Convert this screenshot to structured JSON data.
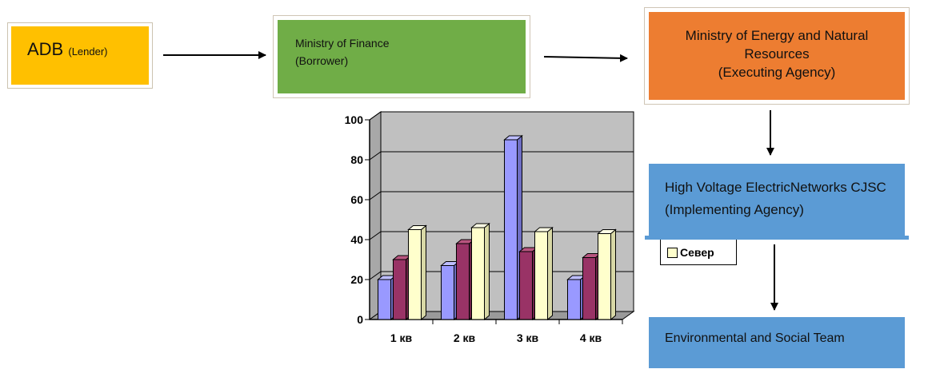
{
  "nodes": {
    "adb": {
      "label": "ADB",
      "sublabel": "(Lender)"
    },
    "mof": {
      "line1": "Ministry of Finance",
      "line2": "(Borrower)"
    },
    "moe": {
      "line1": "Ministry of Energy and Natural",
      "line2": "Resources",
      "line3": "(Executing Agency)"
    },
    "hv": {
      "line1": "High Voltage ElectricNetworks CJSC",
      "line2": "(Implementing Agency)"
    },
    "est": {
      "label": "Environmental and Social Team"
    }
  },
  "colors": {
    "adb": "#ffc000",
    "mof": "#70ad47",
    "moe": "#ed7d31",
    "hv": "#5b9bd5",
    "est": "#5b9bd5",
    "series1": "#9999ff",
    "series2": "#993366",
    "series3": "#ffffcc",
    "plot_bg": "#c0c0c0"
  },
  "legend": {
    "label": "Север"
  },
  "chart_data": {
    "type": "bar",
    "categories": [
      "1 кв",
      "2 кв",
      "3 кв",
      "4 кв"
    ],
    "series": [
      {
        "values": [
          20,
          27,
          90,
          20
        ]
      },
      {
        "values": [
          30,
          38,
          34,
          31
        ]
      },
      {
        "name": "Север",
        "values": [
          45,
          46,
          44,
          43
        ]
      }
    ],
    "ylim": [
      0,
      100
    ],
    "yticks": [
      0,
      20,
      40,
      60,
      80,
      100
    ],
    "grid": true,
    "legend_position": "right"
  }
}
